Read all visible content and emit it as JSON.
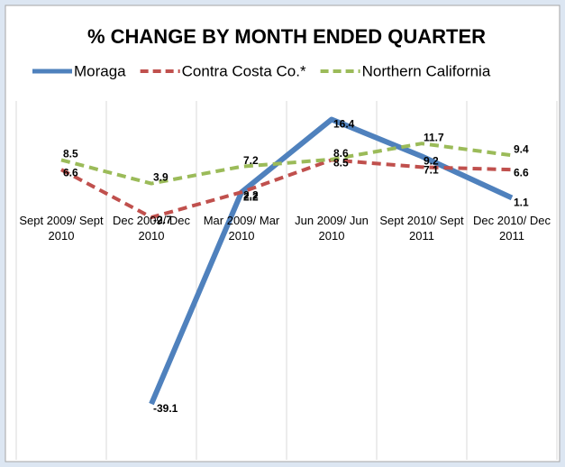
{
  "chart_data": {
    "type": "line",
    "title": "% CHANGE BY MONTH ENDED QUARTER",
    "categories": [
      "Sept 2009/ Sept 2010",
      "Dec 2009/ Dec 2010",
      "Mar 2009/ Mar 2010",
      "Jun 2009/ Jun 2010",
      "Sept 2010/ Sept 2011",
      "Dec 2010/ Dec 2011"
    ],
    "series": [
      {
        "name": "Moraga",
        "color": "#4f81bd",
        "values": [
          null,
          -39.1,
          2.2,
          16.4,
          9.2,
          1.1
        ]
      },
      {
        "name": "Contra Costa Co.*",
        "color": "#c0504d",
        "values": [
          6.6,
          -2.7,
          2.2,
          8.5,
          7.1,
          6.6
        ]
      },
      {
        "name": "Northern California",
        "color": "#9bbb59",
        "values": [
          8.5,
          3.9,
          7.2,
          8.6,
          11.7,
          9.4
        ]
      }
    ],
    "ylim": [
      -50,
      20
    ],
    "legend": "top"
  }
}
